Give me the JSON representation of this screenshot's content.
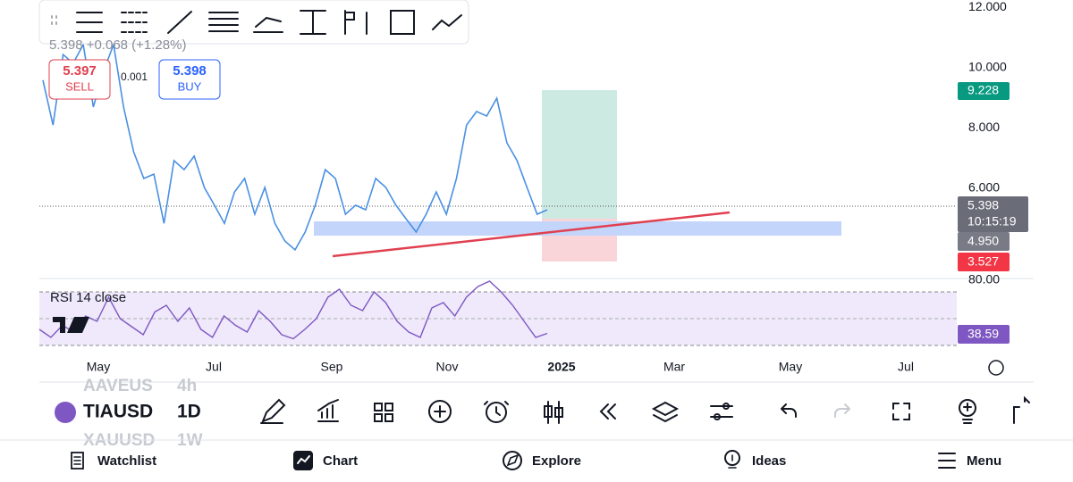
{
  "quote": {
    "change": "5.398 +0.068 (+1.28%)",
    "sell": {
      "price": "5.397",
      "label": "SELL"
    },
    "spread": "0.001",
    "buy": {
      "price": "5.398",
      "label": "BUY"
    }
  },
  "chart": {
    "price_axis": [
      {
        "value": 12,
        "label": "12.000"
      },
      {
        "value": 10,
        "label": "10.000"
      },
      {
        "value": 8,
        "label": "8.000"
      },
      {
        "value": 6,
        "label": "6.000"
      }
    ],
    "price_tags": {
      "target": "9.228",
      "last": "5.398",
      "countdown": "10:15:19",
      "entry": "4.950",
      "stop": "3.527"
    },
    "price": [
      9.59,
      8.1,
      10.44,
      10.15,
      10.77,
      8.7,
      9.88,
      10.77,
      8.7,
      7.21,
      6.33,
      6.47,
      4.84,
      6.92,
      6.62,
      7.07,
      6.03,
      5.44,
      4.84,
      5.88,
      6.33,
      5.14,
      6.03,
      4.84,
      4.25,
      3.96,
      4.55,
      5.44,
      6.62,
      6.33,
      5.14,
      5.44,
      5.29,
      6.33,
      6.03,
      5.44,
      4.99,
      4.55,
      5.14,
      5.88,
      5.14,
      6.33,
      8.1,
      8.55,
      8.4,
      8.99,
      7.51,
      6.92,
      6.03,
      5.14,
      5.29
    ],
    "rsi_label": "RSI 14 close",
    "rsi_axis_top": "80.00",
    "rsi_value": "38.59",
    "rsi": [
      42,
      36,
      45,
      40,
      52,
      48,
      66,
      50,
      44,
      38,
      55,
      60,
      48,
      58,
      42,
      36,
      52,
      45,
      40,
      56,
      48,
      38,
      35,
      42,
      50,
      66,
      72,
      60,
      56,
      70,
      62,
      48,
      40,
      36,
      58,
      62,
      52,
      66,
      74,
      78,
      70,
      60,
      48,
      36,
      39
    ],
    "months": [
      "May",
      "Jul",
      "Sep",
      "Nov",
      "2025",
      "Mar",
      "May",
      "Jul"
    ]
  },
  "toolbar": {
    "symbol": "TIAUSD",
    "interval": "1D",
    "prev_symbol": "AAVEUS",
    "prev_interval": "4h",
    "next_symbol": "XAUUSD",
    "next_interval": "1W"
  },
  "nav": [
    "Watchlist",
    "Chart",
    "Explore",
    "Ideas",
    "Menu"
  ]
}
